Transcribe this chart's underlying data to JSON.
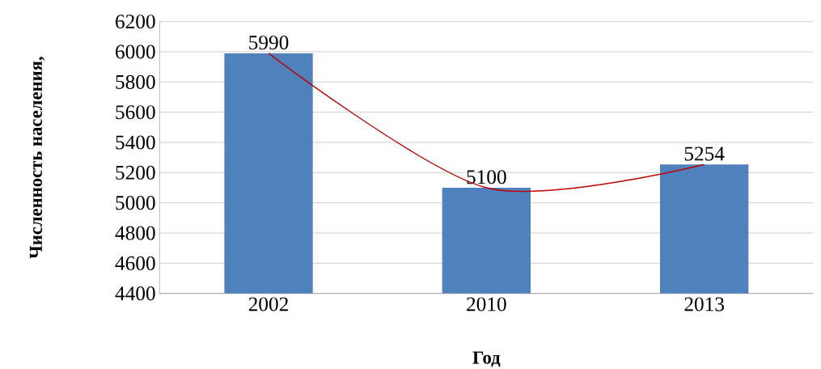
{
  "chart_data": {
    "type": "bar",
    "xlabel": "Год",
    "ylabel": "Численность населения,",
    "categories": [
      "2002",
      "2010",
      "2013"
    ],
    "series": [
      {
        "color": "#4f81bd",
        "values": [
          5990,
          5100,
          5254
        ],
        "value_labels": [
          "5990",
          "5100",
          "5254"
        ]
      },
      {
        "type": "line",
        "color": "#c00000",
        "values": [
          5990,
          5100,
          5254
        ],
        "marker": "none"
      }
    ],
    "ylim": [
      4400,
      6200
    ],
    "yticks": [
      4400,
      4600,
      4800,
      5000,
      5200,
      5400,
      5600,
      5800,
      6000,
      6200
    ],
    "grid": "y"
  }
}
